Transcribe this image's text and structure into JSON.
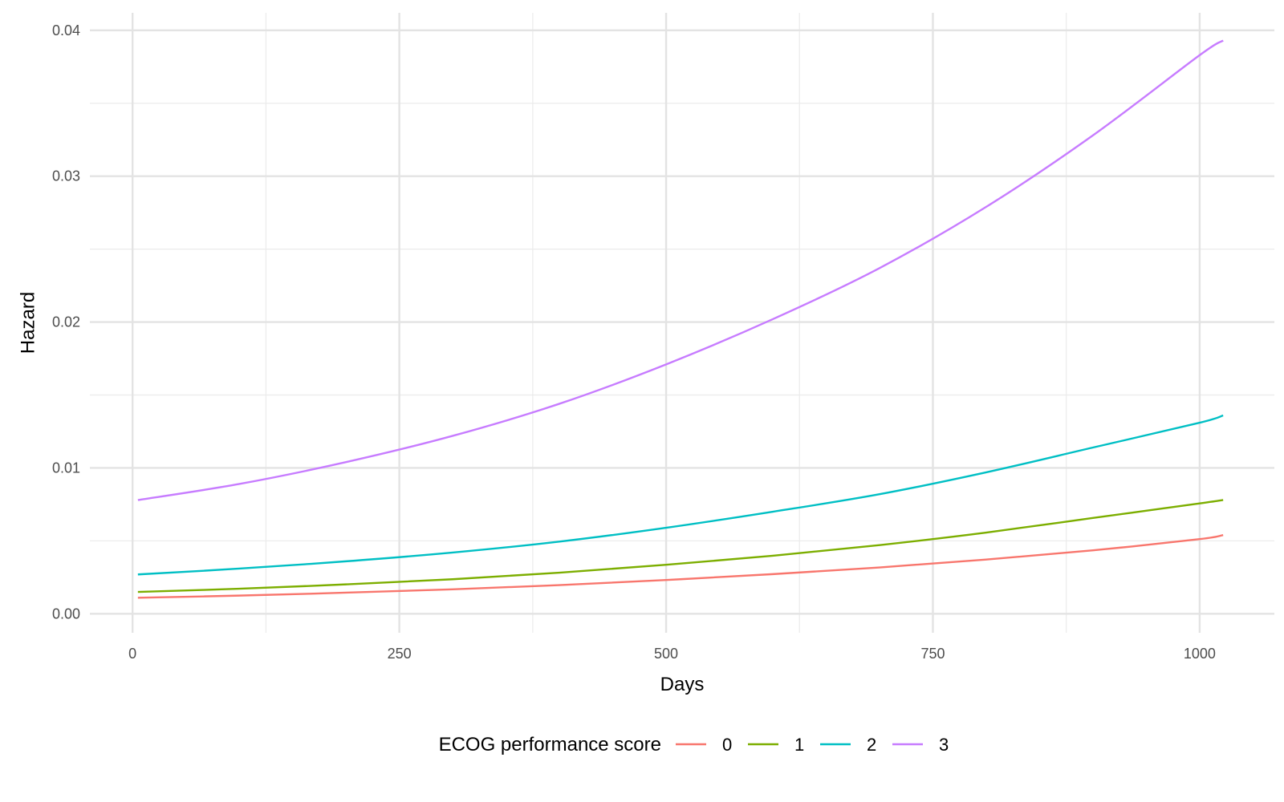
{
  "chart_data": {
    "type": "line",
    "title": "",
    "xlabel": "Days",
    "ylabel": "Hazard",
    "xlim": [
      -40,
      1070
    ],
    "ylim": [
      -0.0013,
      0.0412
    ],
    "xticks": [
      0,
      250,
      500,
      750,
      1000
    ],
    "xtick_labels": [
      "0",
      "250",
      "500",
      "750",
      "1000"
    ],
    "yticks": [
      0.0,
      0.01,
      0.02,
      0.03,
      0.04
    ],
    "ytick_labels": [
      "0.00",
      "0.01",
      "0.02",
      "0.03",
      "0.04"
    ],
    "grid": true,
    "legend_title": "ECOG performance score",
    "legend_position": "bottom",
    "x": [
      5,
      100,
      200,
      300,
      400,
      500,
      600,
      700,
      800,
      900,
      1000,
      1022
    ],
    "series": [
      {
        "name": "0",
        "color": "#F8766D",
        "values": [
          0.0011,
          0.00125,
          0.00145,
          0.00168,
          0.00197,
          0.00232,
          0.00272,
          0.00318,
          0.00372,
          0.00435,
          0.00512,
          0.0054
        ]
      },
      {
        "name": "1",
        "color": "#7CAE00",
        "values": [
          0.0015,
          0.00172,
          0.00202,
          0.00237,
          0.00282,
          0.00336,
          0.00398,
          0.00471,
          0.00557,
          0.00657,
          0.00757,
          0.0078
        ]
      },
      {
        "name": "2",
        "color": "#00BFC4",
        "values": [
          0.0027,
          0.0031,
          0.0036,
          0.0042,
          0.00495,
          0.0059,
          0.007,
          0.0082,
          0.0097,
          0.0114,
          0.0131,
          0.0136
        ]
      },
      {
        "name": "3",
        "color": "#C77CFF",
        "values": [
          0.0078,
          0.0089,
          0.0104,
          0.0122,
          0.0144,
          0.0171,
          0.0202,
          0.0237,
          0.0279,
          0.0328,
          0.0383,
          0.0393
        ]
      }
    ]
  }
}
